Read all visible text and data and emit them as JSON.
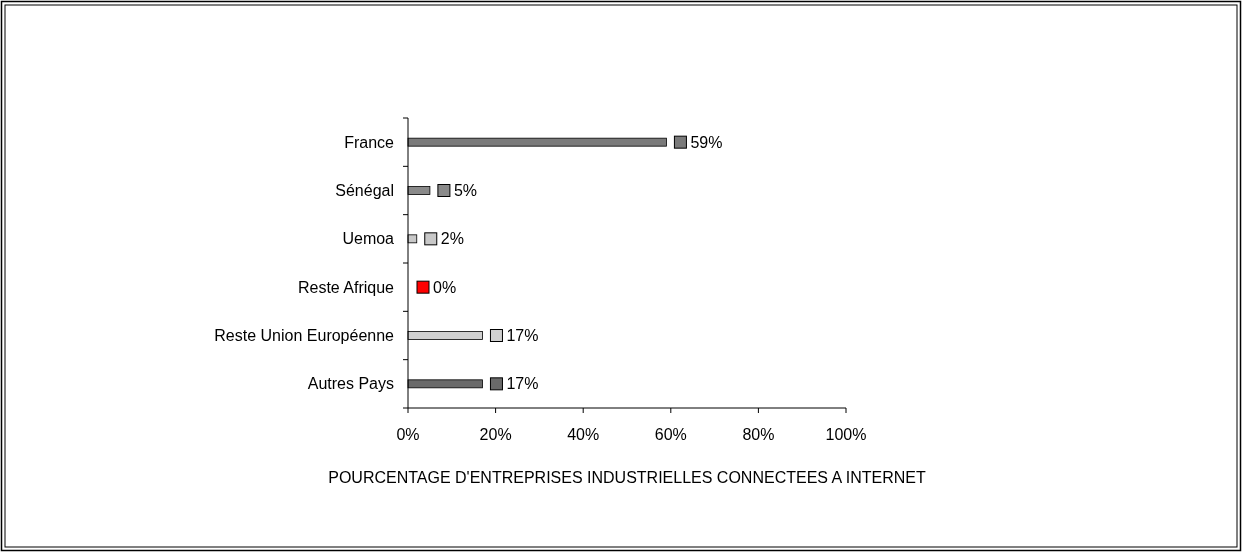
{
  "chart_data": {
    "type": "bar",
    "orientation": "horizontal",
    "xlabel": "POURCENTAGE D'ENTREPRISES INDUSTRIELLES CONNECTEES A INTERNET",
    "categories": [
      "France",
      "Sénégal",
      "Uemoa",
      "Reste Afrique",
      "Reste Union Européenne",
      "Autres Pays"
    ],
    "values": [
      59,
      5,
      2,
      0,
      17,
      17
    ],
    "colors": [
      "#7a7a7a",
      "#8a8a8a",
      "#c8c8c8",
      "#ff0000",
      "#d0d0d0",
      "#6a6a6a"
    ],
    "value_labels": [
      "59%",
      "5%",
      "2%",
      "0%",
      "17%",
      "17%"
    ],
    "xlim": [
      0,
      100
    ],
    "xticks": [
      {
        "value": 0,
        "label": "0%"
      },
      {
        "value": 20,
        "label": "20%"
      },
      {
        "value": 40,
        "label": "40%"
      },
      {
        "value": 60,
        "label": "60%"
      },
      {
        "value": 80,
        "label": "80%"
      },
      {
        "value": 100,
        "label": "100%"
      }
    ]
  }
}
